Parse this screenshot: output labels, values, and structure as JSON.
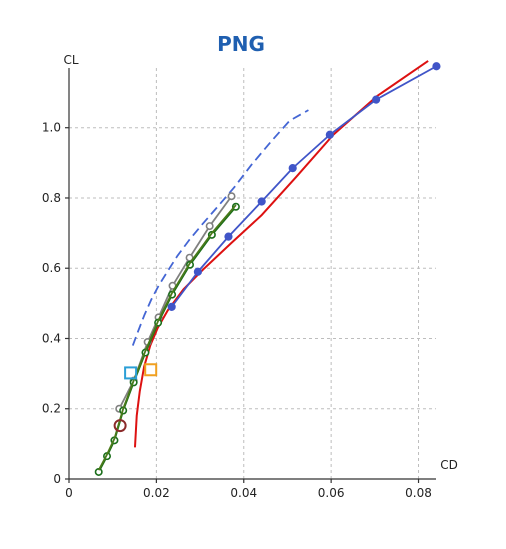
{
  "chart_data": {
    "type": "line",
    "title": "PNG",
    "xlabel": "CD",
    "ylabel": "CL",
    "xlim": [
      0,
      0.084
    ],
    "ylim": [
      0,
      1.17
    ],
    "x_ticks": [
      0,
      0.02,
      0.04,
      0.06,
      0.08
    ],
    "x_tick_labels": [
      "0",
      "0.02",
      "0.04",
      "0.06",
      "0.08"
    ],
    "y_ticks": [
      0,
      0.2,
      0.4,
      0.6,
      0.8,
      1.0
    ],
    "y_tick_labels": [
      "0",
      "0.2",
      "0.4",
      "0.6",
      "0.8",
      "1.0"
    ],
    "grid": true,
    "series": [
      {
        "style": "dashed",
        "color": "#4466d4",
        "markers": "none",
        "x": [
          0.0146,
          0.0158,
          0.0172,
          0.0188,
          0.0205,
          0.0225,
          0.0248,
          0.0275,
          0.0305,
          0.034,
          0.0378,
          0.0418,
          0.0462,
          0.0505,
          0.0548
        ],
        "y": [
          0.38,
          0.42,
          0.465,
          0.51,
          0.55,
          0.59,
          0.635,
          0.68,
          0.725,
          0.775,
          0.83,
          0.895,
          0.96,
          1.02,
          1.05
        ]
      },
      {
        "style": "solid",
        "color": "#dd1111",
        "markers": "none",
        "x": [
          0.0151,
          0.0155,
          0.0162,
          0.0172,
          0.0186,
          0.0203,
          0.0226,
          0.0262,
          0.031,
          0.037,
          0.044,
          0.052,
          0.0605,
          0.0705,
          0.0822
        ],
        "y": [
          0.09,
          0.18,
          0.25,
          0.32,
          0.38,
          0.43,
          0.48,
          0.54,
          0.6,
          0.67,
          0.75,
          0.86,
          0.98,
          1.09,
          1.19
        ]
      },
      {
        "style": "solid",
        "color": "#4055c8",
        "markers": "filled-circle",
        "x": [
          0.0235,
          0.0295,
          0.0365,
          0.0441,
          0.0512,
          0.0597,
          0.0703,
          0.0841
        ],
        "y": [
          0.49,
          0.59,
          0.69,
          0.79,
          0.885,
          0.98,
          1.08,
          1.175
        ]
      },
      {
        "style": "solid",
        "color": "#808080",
        "markers": "hollow-circle",
        "x": [
          0.0115,
          0.0148,
          0.018,
          0.0205,
          0.0237,
          0.0276,
          0.0322,
          0.0372
        ],
        "y": [
          0.2,
          0.28,
          0.39,
          0.46,
          0.55,
          0.63,
          0.72,
          0.805
        ]
      },
      {
        "style": "solid",
        "color": "#1a6e1a",
        "markers": "hollow-circle",
        "x": [
          0.0068,
          0.0087,
          0.0104,
          0.0124,
          0.0148,
          0.0175,
          0.0204,
          0.0236,
          0.0277,
          0.0327,
          0.0382
        ],
        "y": [
          0.02,
          0.065,
          0.11,
          0.195,
          0.275,
          0.36,
          0.445,
          0.525,
          0.61,
          0.695,
          0.775
        ]
      },
      {
        "style": "solid",
        "color": "#4a7a1a",
        "markers": "none",
        "x": [
          0.0068,
          0.0087,
          0.0104,
          0.0124,
          0.0148,
          0.0175,
          0.0204,
          0.0236,
          0.0277,
          0.0327,
          0.0382
        ],
        "y": [
          0.025,
          0.07,
          0.115,
          0.2,
          0.28,
          0.365,
          0.45,
          0.53,
          0.615,
          0.7,
          0.78
        ]
      }
    ],
    "special_points": [
      {
        "shape": "square",
        "color": "#2b9fd6",
        "x": 0.0141,
        "y": 0.302
      },
      {
        "shape": "square",
        "color": "#f0a020",
        "x": 0.0187,
        "y": 0.311
      },
      {
        "shape": "circle",
        "color": "#8b2a2a",
        "x": 0.0117,
        "y": 0.152
      }
    ]
  }
}
